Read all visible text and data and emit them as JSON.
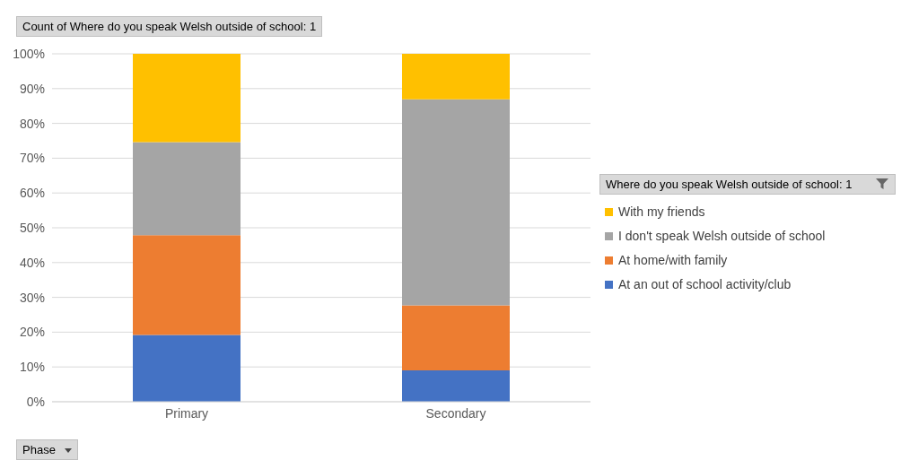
{
  "chart_data": {
    "type": "bar",
    "title": "Count of Where do you speak Welsh outside of school: 1",
    "xlabel": "Phase",
    "legend_title": "Where do you speak Welsh outside of school: 1",
    "categories": [
      "Primary",
      "Secondary"
    ],
    "stacked": true,
    "series": [
      {
        "name": "At an out of school activity/club",
        "color": "#4472c4",
        "values": [
          19.2,
          9.0
        ]
      },
      {
        "name": "At home/with family",
        "color": "#ed7d31",
        "values": [
          28.7,
          18.7
        ]
      },
      {
        "name": "I don't speak Welsh outside of school",
        "color": "#a5a5a5",
        "values": [
          26.7,
          59.2
        ]
      },
      {
        "name": "With my friends",
        "color": "#ffc000",
        "values": [
          25.4,
          13.1
        ]
      }
    ],
    "ylim": [
      0,
      100
    ],
    "yticks": [
      {
        "value": 0,
        "label": "0%"
      },
      {
        "value": 10,
        "label": "10%"
      },
      {
        "value": 20,
        "label": "20%"
      },
      {
        "value": 30,
        "label": "30%"
      },
      {
        "value": 40,
        "label": "40%"
      },
      {
        "value": 50,
        "label": "50%"
      },
      {
        "value": 60,
        "label": "60%"
      },
      {
        "value": 70,
        "label": "70%"
      },
      {
        "value": 80,
        "label": "80%"
      },
      {
        "value": 90,
        "label": "90%"
      },
      {
        "value": 100,
        "label": "100%"
      }
    ],
    "grid": "y",
    "legend": "right"
  }
}
